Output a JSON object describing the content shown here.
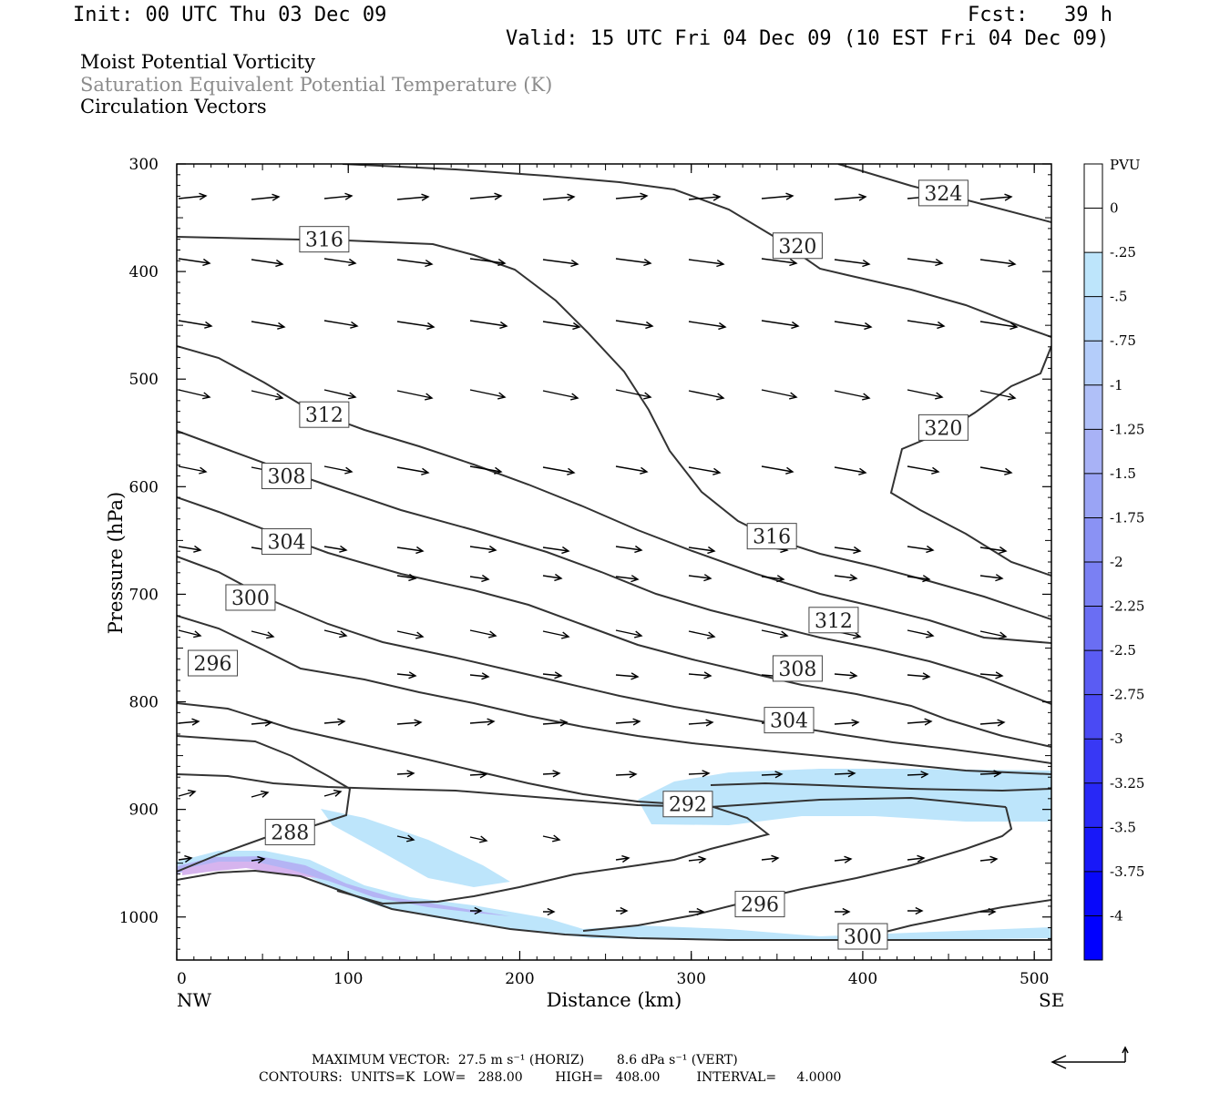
{
  "header": {
    "init": "Init: 00 UTC Thu 03 Dec 09",
    "fcst": "Fcst:   39 h",
    "valid": "Valid: 15 UTC Fri 04 Dec 09 (10 EST Fri 04 Dec 09)",
    "field1": "Moist Potential Vorticity",
    "field2": "Saturation Equivalent Potential Temperature (K)",
    "field3": "Circulation Vectors"
  },
  "footer": {
    "line1": "MAXIMUM VECTOR:  27.5 m s⁻¹ (HORIZ)        8.6 dPa s⁻¹ (VERT)",
    "line2": "CONTOURS:  UNITS=K  LOW=   288.00        HIGH=   408.00         INTERVAL=     4.0000"
  },
  "colors": {
    "contour": "#333333",
    "shade_light": "#bde5fb",
    "shade_mid": "#b4b4f4",
    "shade_pink": "#d6b4ee"
  },
  "chart_data": {
    "type": "contour",
    "xlabel": "Distance (km)",
    "ylabel": "Pressure (hPa)",
    "x_ticks": [
      "0",
      "100",
      "200",
      "300",
      "400",
      "500"
    ],
    "x_tick_values": [
      0,
      100,
      200,
      300,
      400,
      500
    ],
    "y_ticks": [
      "300",
      "400",
      "500",
      "600",
      "700",
      "800",
      "900",
      "1000"
    ],
    "y_tick_values": [
      300,
      400,
      500,
      600,
      700,
      800,
      900,
      1000
    ],
    "xlim": [
      0,
      510
    ],
    "ylim": [
      300,
      1040
    ],
    "left_end_label": "NW",
    "right_end_label": "SE",
    "colorbar": {
      "unit": "PVU",
      "levels": [
        "0",
        "-.25",
        "-.5",
        "-.75",
        "-1",
        "-1.25",
        "-1.5",
        "-1.75",
        "-2",
        "-2.25",
        "-2.5",
        "-2.75",
        "-3",
        "-3.25",
        "-3.5",
        "-3.75",
        "-4"
      ],
      "colors": [
        "#ffffff",
        "#ffffff",
        "#bde5fb",
        "#b8d9fb",
        "#b4cdfa",
        "#b0c0f8",
        "#a8b2f6",
        "#9aa4f5",
        "#8a92f4",
        "#7a80f3",
        "#6a6ef3",
        "#5a5cf3",
        "#4a4af4",
        "#3838f5",
        "#2828f6",
        "#1818f8",
        "#0808fa",
        "#0000ff"
      ]
    },
    "contour_labels": [
      {
        "value": "324",
        "x": 447,
        "p": 327
      },
      {
        "value": "316",
        "x": 86,
        "p": 370
      },
      {
        "value": "320",
        "x": 362,
        "p": 376
      },
      {
        "value": "312",
        "x": 86,
        "p": 533
      },
      {
        "value": "320",
        "x": 447,
        "p": 545
      },
      {
        "value": "308",
        "x": 64,
        "p": 590
      },
      {
        "value": "316",
        "x": 347,
        "p": 646
      },
      {
        "value": "304",
        "x": 64,
        "p": 651
      },
      {
        "value": "300",
        "x": 43,
        "p": 703
      },
      {
        "value": "312",
        "x": 383,
        "p": 724
      },
      {
        "value": "296",
        "x": 21,
        "p": 764
      },
      {
        "value": "308",
        "x": 362,
        "p": 769
      },
      {
        "value": "304",
        "x": 357,
        "p": 817
      },
      {
        "value": "292",
        "x": 298,
        "p": 895
      },
      {
        "value": "288",
        "x": 66,
        "p": 921
      },
      {
        "value": "296",
        "x": 340,
        "p": 988
      },
      {
        "value": "300",
        "x": 400,
        "p": 1018
      }
    ]
  }
}
